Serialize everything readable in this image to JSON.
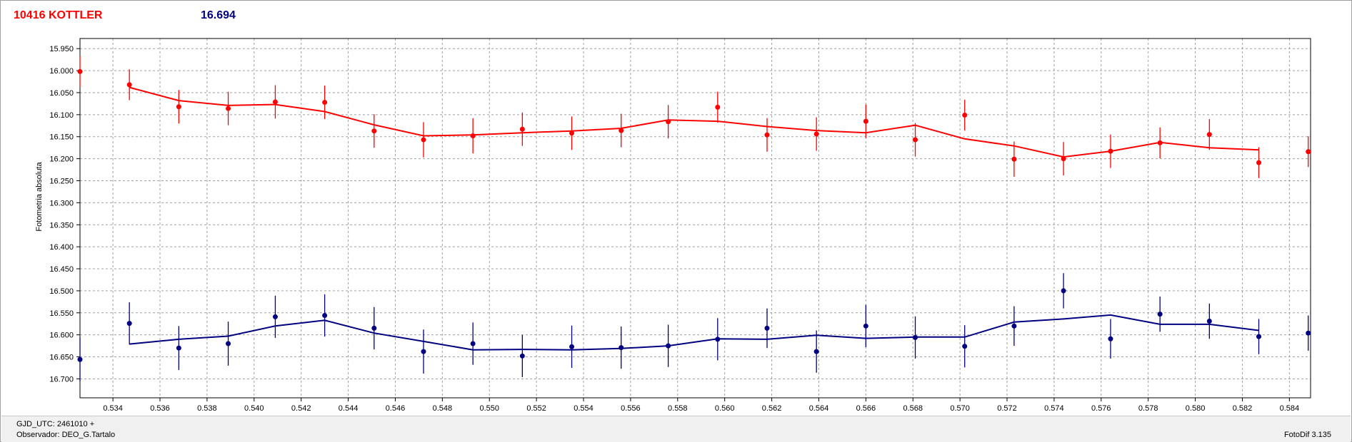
{
  "header": {
    "star_name": "10416 KOTTLER",
    "magnitude": "16.694"
  },
  "footer": {
    "gjd": "GJD_UTC: 2461010 +",
    "observer": "Observador: DEO_G.Tartalo",
    "version": "FotoDif 3.135"
  },
  "colors": {
    "series1": "#ff0000",
    "series2": "#000080",
    "grid": "#a0a0a0"
  },
  "chart_data": {
    "type": "scatter",
    "ylabel": "Fotometria absoluta",
    "xlabel": "",
    "xlim": [
      0.5326,
      0.5849
    ],
    "ylim": [
      15.927,
      16.743
    ],
    "y_inverted": true,
    "grid": true,
    "xticks": [
      "0.534",
      "0.536",
      "0.538",
      "0.540",
      "0.542",
      "0.544",
      "0.546",
      "0.548",
      "0.550",
      "0.552",
      "0.554",
      "0.556",
      "0.558",
      "0.560",
      "0.562",
      "0.564",
      "0.566",
      "0.568",
      "0.570",
      "0.572",
      "0.574",
      "0.576",
      "0.578",
      "0.580",
      "0.582",
      "0.584"
    ],
    "yticks": [
      "15.950",
      "16.000",
      "16.050",
      "16.100",
      "16.150",
      "16.200",
      "16.250",
      "16.300",
      "16.350",
      "16.400",
      "16.450",
      "16.500",
      "16.550",
      "16.600",
      "16.650",
      "16.700"
    ],
    "series": [
      {
        "color": "#ff0000",
        "x": [
          0.5326,
          0.5347,
          0.5368,
          0.5389,
          0.5409,
          0.543,
          0.5451,
          0.5472,
          0.5493,
          0.5514,
          0.5535,
          0.5556,
          0.5576,
          0.5597,
          0.5618,
          0.5639,
          0.566,
          0.5681,
          0.5702,
          0.5723,
          0.5744,
          0.5764,
          0.5785,
          0.5806,
          0.5827,
          0.5848
        ],
        "y": [
          16.002,
          16.032,
          16.082,
          16.086,
          16.071,
          16.072,
          16.137,
          16.157,
          16.148,
          16.133,
          16.142,
          16.136,
          16.116,
          16.083,
          16.146,
          16.144,
          16.115,
          16.157,
          16.101,
          16.201,
          16.2,
          16.183,
          16.164,
          16.145,
          16.209,
          16.184
        ],
        "err": [
          0.035,
          0.035,
          0.038,
          0.038,
          0.038,
          0.038,
          0.038,
          0.04,
          0.04,
          0.038,
          0.038,
          0.038,
          0.038,
          0.035,
          0.038,
          0.038,
          0.038,
          0.038,
          0.035,
          0.04,
          0.038,
          0.038,
          0.035,
          0.035,
          0.035,
          0.035
        ],
        "fit_x": [
          0.5347,
          0.5368,
          0.5389,
          0.5409,
          0.543,
          0.5451,
          0.5472,
          0.5493,
          0.5514,
          0.5535,
          0.5556,
          0.5576,
          0.5597,
          0.5618,
          0.5639,
          0.566,
          0.5681,
          0.5702,
          0.5723,
          0.5744,
          0.5764,
          0.5785,
          0.5806,
          0.5827
        ],
        "fit_y": [
          16.038,
          16.068,
          16.079,
          16.077,
          16.093,
          16.123,
          16.148,
          16.146,
          16.141,
          16.137,
          16.131,
          16.112,
          16.115,
          16.127,
          16.136,
          16.141,
          16.124,
          16.155,
          16.171,
          16.196,
          16.183,
          16.163,
          16.175,
          16.18
        ]
      },
      {
        "color": "#000080",
        "x": [
          0.5326,
          0.5347,
          0.5368,
          0.5389,
          0.5409,
          0.543,
          0.5451,
          0.5472,
          0.5493,
          0.5514,
          0.5535,
          0.5556,
          0.5576,
          0.5597,
          0.5618,
          0.5639,
          0.566,
          0.5681,
          0.5702,
          0.5723,
          0.5744,
          0.5764,
          0.5785,
          0.5806,
          0.5827,
          0.5848
        ],
        "y": [
          16.656,
          16.574,
          16.63,
          16.62,
          16.559,
          16.556,
          16.585,
          16.638,
          16.62,
          16.648,
          16.627,
          16.629,
          16.625,
          16.61,
          16.585,
          16.638,
          16.58,
          16.606,
          16.626,
          16.58,
          16.5,
          16.609,
          16.553,
          16.569,
          16.604,
          16.596
        ],
        "err": [
          0.05,
          0.048,
          0.05,
          0.05,
          0.048,
          0.048,
          0.048,
          0.05,
          0.048,
          0.048,
          0.048,
          0.048,
          0.048,
          0.048,
          0.045,
          0.048,
          0.048,
          0.048,
          0.048,
          0.045,
          0.04,
          0.045,
          0.04,
          0.04,
          0.04,
          0.04
        ],
        "fit_x": [
          0.5347,
          0.5368,
          0.5389,
          0.5409,
          0.543,
          0.5451,
          0.5472,
          0.5493,
          0.5514,
          0.5535,
          0.5556,
          0.5576,
          0.5597,
          0.5618,
          0.5639,
          0.566,
          0.5681,
          0.5702,
          0.5723,
          0.5744,
          0.5764,
          0.5785,
          0.5806,
          0.5827
        ],
        "fit_y": [
          16.621,
          16.61,
          16.603,
          16.58,
          16.567,
          16.596,
          16.615,
          16.634,
          16.633,
          16.634,
          16.631,
          16.625,
          16.609,
          16.61,
          16.601,
          16.608,
          16.605,
          16.605,
          16.571,
          16.564,
          16.555,
          16.576,
          16.576,
          16.59
        ]
      }
    ]
  }
}
